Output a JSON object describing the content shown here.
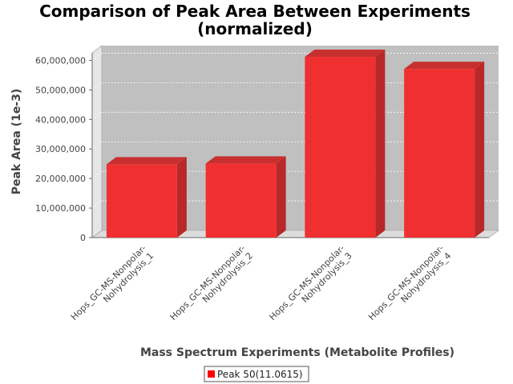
{
  "chart_data": {
    "type": "bar",
    "title_lines": [
      "Comparison of Peak Area Between Experiments",
      "(normalized)"
    ],
    "xlabel": "Mass Spectrum Experiments (Metabolite Profiles)",
    "ylabel": "Peak Area (1e-3)",
    "categories": [
      [
        "Hops_GC-MS-Nonpolar-",
        "Nohydrolysis_1"
      ],
      [
        "Hops_GC-MS-Nonpolar-",
        "Nohydrolysis_2"
      ],
      [
        "Hops_GC-MS-Nonpolar-",
        "Nohydrolysis_3"
      ],
      [
        "Hops_GC-MS-Nonpolar-",
        "Nohydrolysis_4"
      ]
    ],
    "series": [
      {
        "name": "Peak 50(11.0615)",
        "values": [
          24800000,
          25100000,
          61200000,
          57100000
        ]
      }
    ],
    "ylim": [
      0,
      65000000
    ],
    "yticks": [
      0,
      10000000,
      20000000,
      30000000,
      40000000,
      50000000,
      60000000
    ],
    "ytick_labels": [
      "0",
      "10,000,000",
      "20,000,000",
      "30,000,000",
      "40,000,000",
      "50,000,000",
      "60,000,000"
    ],
    "grid": true,
    "legend_position": "bottom-center",
    "colors": {
      "bar_front": "#f03030",
      "bar_side": "#b82828",
      "bar_top": "#c83030",
      "plot_bg": "#c0c0c0",
      "wall": "#e6e6e6",
      "floor": "#dcdcdc",
      "grid": "#ffffff"
    }
  }
}
